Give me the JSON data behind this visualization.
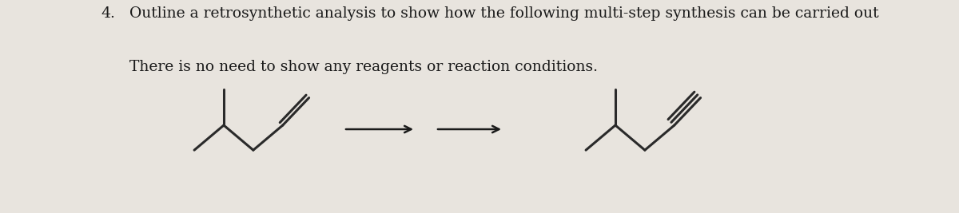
{
  "title_number": "4.",
  "line1": "Outline a retrosynthetic analysis to show how the following multi-step synthesis can be carried out",
  "line2": "There is no need to show any reagents or reaction conditions.",
  "bg_color": "#e8e4de",
  "text_color": "#1a1a1a",
  "font_size": 13.5,
  "lw": 2.2,
  "mol_color": "#2a2a2a",
  "arrow_color": "#1a1a1a"
}
